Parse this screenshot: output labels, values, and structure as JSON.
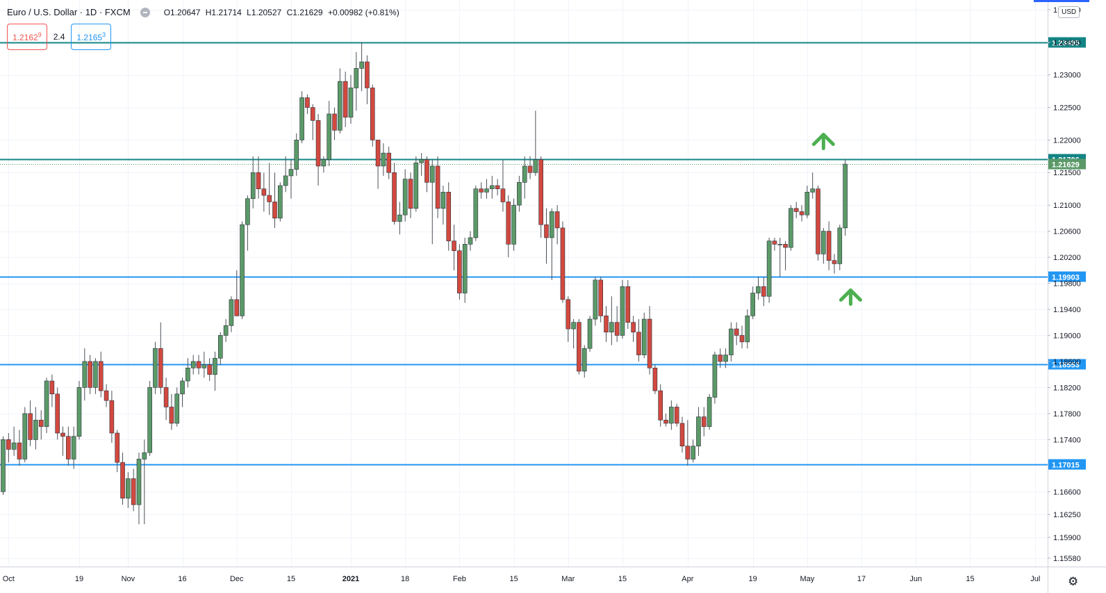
{
  "header": {
    "symbol": "Euro / U.S. Dollar · 1D · FXCM",
    "open": "O1.20647",
    "high": "H1.21714",
    "low": "L1.20527",
    "close": "C1.21629",
    "change": "+0.00982 (+0.81%)"
  },
  "quotes": {
    "sell_main": "1.2162",
    "sell_sup": "9",
    "spread": "2.4",
    "buy_main": "1.2165",
    "buy_sup": "3"
  },
  "currency": "USD",
  "colors": {
    "up": "#5b9a68",
    "down": "#d2493f",
    "teal_line": "#138484",
    "blue_line": "#2196f3",
    "arrow": "#4caf50"
  },
  "chart_data": {
    "type": "candlestick",
    "title": "Euro / U.S. Dollar · 1D · FXCM",
    "x_ticks": [
      {
        "i": 1,
        "label": "Oct"
      },
      {
        "i": 14,
        "label": "19"
      },
      {
        "i": 23,
        "label": "Nov"
      },
      {
        "i": 33,
        "label": "16"
      },
      {
        "i": 43,
        "label": "Dec"
      },
      {
        "i": 53,
        "label": "15"
      },
      {
        "i": 64,
        "label": "2021"
      },
      {
        "i": 74,
        "label": "18"
      },
      {
        "i": 84,
        "label": "Feb"
      },
      {
        "i": 94,
        "label": "15"
      },
      {
        "i": 104,
        "label": "Mar"
      },
      {
        "i": 114,
        "label": "15"
      },
      {
        "i": 126,
        "label": "Apr"
      },
      {
        "i": 138,
        "label": "19"
      },
      {
        "i": 148,
        "label": "May"
      },
      {
        "i": 158,
        "label": "17"
      },
      {
        "i": 168,
        "label": "Jun"
      },
      {
        "i": 178,
        "label": "15"
      },
      {
        "i": 190,
        "label": "Jul"
      }
    ],
    "y_ticks": [
      1.24,
      1.235,
      1.23,
      1.225,
      1.22,
      1.215,
      1.21,
      1.206,
      1.202,
      1.198,
      1.194,
      1.19,
      1.186,
      1.182,
      1.178,
      1.174,
      1.166,
      1.1625,
      1.159,
      1.1558
    ],
    "ylim": [
      1.1545,
      1.2415
    ],
    "horizontal_lines": [
      {
        "price": 1.23495,
        "label": "1.23495",
        "style": "teal"
      },
      {
        "price": 1.21706,
        "label": "1.21706",
        "style": "teal"
      },
      {
        "price": 1.19903,
        "label": "1.19903",
        "style": "blue"
      },
      {
        "price": 1.18553,
        "label": "1.18553",
        "style": "blue"
      },
      {
        "price": 1.17015,
        "label": "1.17015",
        "style": "blue"
      }
    ],
    "last_price": {
      "price": 1.21629,
      "label": "1.21629"
    },
    "annotations": [
      {
        "type": "up-arrow",
        "x_index": 151,
        "price": 1.2202
      },
      {
        "type": "up-arrow",
        "x_index": 156,
        "price": 1.1963
      }
    ],
    "candles": [
      [
        1.166,
        1.1745,
        1.1655,
        1.174
      ],
      [
        1.174,
        1.175,
        1.1705,
        1.1725
      ],
      [
        1.1725,
        1.176,
        1.1715,
        1.1735
      ],
      [
        1.1735,
        1.1755,
        1.17,
        1.171
      ],
      [
        1.171,
        1.179,
        1.1705,
        1.178
      ],
      [
        1.178,
        1.18,
        1.173,
        1.174
      ],
      [
        1.174,
        1.179,
        1.1725,
        1.177
      ],
      [
        1.177,
        1.1785,
        1.174,
        1.176
      ],
      [
        1.176,
        1.1835,
        1.175,
        1.183
      ],
      [
        1.183,
        1.184,
        1.179,
        1.181
      ],
      [
        1.181,
        1.182,
        1.174,
        1.175
      ],
      [
        1.175,
        1.176,
        1.1715,
        1.1745
      ],
      [
        1.1745,
        1.176,
        1.17,
        1.171
      ],
      [
        1.171,
        1.176,
        1.1695,
        1.1745
      ],
      [
        1.1745,
        1.183,
        1.174,
        1.182
      ],
      [
        1.182,
        1.188,
        1.18,
        1.186
      ],
      [
        1.186,
        1.187,
        1.181,
        1.182
      ],
      [
        1.182,
        1.1865,
        1.181,
        1.186
      ],
      [
        1.186,
        1.1875,
        1.1805,
        1.1815
      ],
      [
        1.1815,
        1.1825,
        1.179,
        1.18
      ],
      [
        1.18,
        1.1815,
        1.1735,
        1.175
      ],
      [
        1.175,
        1.1755,
        1.169,
        1.1705
      ],
      [
        1.1705,
        1.172,
        1.164,
        1.165
      ],
      [
        1.165,
        1.169,
        1.1635,
        1.168
      ],
      [
        1.168,
        1.1695,
        1.163,
        1.164
      ],
      [
        1.164,
        1.172,
        1.161,
        1.171
      ],
      [
        1.171,
        1.174,
        1.161,
        1.172
      ],
      [
        1.172,
        1.183,
        1.1715,
        1.182
      ],
      [
        1.182,
        1.189,
        1.181,
        1.188
      ],
      [
        1.188,
        1.192,
        1.181,
        1.182
      ],
      [
        1.182,
        1.1835,
        1.177,
        1.179
      ],
      [
        1.179,
        1.181,
        1.1755,
        1.1765
      ],
      [
        1.1765,
        1.182,
        1.176,
        1.181
      ],
      [
        1.181,
        1.1835,
        1.179,
        1.183
      ],
      [
        1.183,
        1.1865,
        1.182,
        1.185
      ],
      [
        1.185,
        1.187,
        1.184,
        1.186
      ],
      [
        1.186,
        1.187,
        1.184,
        1.185
      ],
      [
        1.185,
        1.1875,
        1.1835,
        1.1855
      ],
      [
        1.1855,
        1.1865,
        1.183,
        1.184
      ],
      [
        1.184,
        1.1875,
        1.1815,
        1.1865
      ],
      [
        1.1865,
        1.1905,
        1.1855,
        1.19
      ],
      [
        1.19,
        1.1925,
        1.189,
        1.1915
      ],
      [
        1.1915,
        1.196,
        1.1905,
        1.1955
      ],
      [
        1.1955,
        1.2,
        1.193,
        1.193
      ],
      [
        1.193,
        1.2075,
        1.1925,
        1.207
      ],
      [
        1.207,
        1.2115,
        1.203,
        1.211
      ],
      [
        1.211,
        1.2175,
        1.2095,
        1.215
      ],
      [
        1.215,
        1.2175,
        1.211,
        1.2125
      ],
      [
        1.2125,
        1.215,
        1.209,
        1.2115
      ],
      [
        1.2115,
        1.2165,
        1.2085,
        1.2105
      ],
      [
        1.2105,
        1.215,
        1.2065,
        1.208
      ],
      [
        1.208,
        1.2135,
        1.2075,
        1.213
      ],
      [
        1.213,
        1.2175,
        1.212,
        1.2145
      ],
      [
        1.2145,
        1.217,
        1.211,
        1.2155
      ],
      [
        1.2155,
        1.221,
        1.2145,
        1.22
      ],
      [
        1.22,
        1.2275,
        1.2195,
        1.2265
      ],
      [
        1.2265,
        1.227,
        1.224,
        1.225
      ],
      [
        1.225,
        1.2255,
        1.22,
        1.223
      ],
      [
        1.223,
        1.224,
        1.213,
        1.216
      ],
      [
        1.216,
        1.2175,
        1.215,
        1.217
      ],
      [
        1.217,
        1.226,
        1.216,
        1.224
      ],
      [
        1.224,
        1.225,
        1.22,
        1.2215
      ],
      [
        1.2215,
        1.231,
        1.221,
        1.229
      ],
      [
        1.229,
        1.2305,
        1.222,
        1.2235
      ],
      [
        1.2235,
        1.23,
        1.2225,
        1.228
      ],
      [
        1.228,
        1.2335,
        1.2245,
        1.231
      ],
      [
        1.231,
        1.235,
        1.2275,
        1.232
      ],
      [
        1.232,
        1.233,
        1.2255,
        1.228
      ],
      [
        1.228,
        1.2285,
        1.219,
        1.22
      ],
      [
        1.22,
        1.22,
        1.2125,
        1.216
      ],
      [
        1.216,
        1.2195,
        1.2145,
        1.218
      ],
      [
        1.218,
        1.219,
        1.214,
        1.215
      ],
      [
        1.215,
        1.2165,
        1.207,
        1.2075
      ],
      [
        1.2075,
        1.2105,
        1.2055,
        1.2085
      ],
      [
        1.2085,
        1.2155,
        1.2075,
        1.214
      ],
      [
        1.214,
        1.215,
        1.208,
        1.2095
      ],
      [
        1.2095,
        1.2175,
        1.209,
        1.2165
      ],
      [
        1.2165,
        1.218,
        1.2145,
        1.217
      ],
      [
        1.217,
        1.2175,
        1.212,
        1.2135
      ],
      [
        1.2135,
        1.217,
        1.204,
        1.216
      ],
      [
        1.216,
        1.2175,
        1.208,
        1.2095
      ],
      [
        1.2095,
        1.213,
        1.207,
        1.212
      ],
      [
        1.212,
        1.2135,
        1.203,
        1.2045
      ],
      [
        1.2045,
        1.207,
        1.2,
        1.203
      ],
      [
        1.203,
        1.204,
        1.1955,
        1.1965
      ],
      [
        1.1965,
        1.205,
        1.195,
        1.204
      ],
      [
        1.204,
        1.206,
        1.203,
        1.205
      ],
      [
        1.205,
        1.213,
        1.2045,
        1.2125
      ],
      [
        1.2125,
        1.2135,
        1.211,
        1.212
      ],
      [
        1.212,
        1.214,
        1.211,
        1.2125
      ],
      [
        1.2125,
        1.2145,
        1.211,
        1.213
      ],
      [
        1.213,
        1.214,
        1.2115,
        1.2125
      ],
      [
        1.2125,
        1.217,
        1.209,
        1.2105
      ],
      [
        1.2105,
        1.2115,
        1.202,
        1.204
      ],
      [
        1.204,
        1.211,
        1.203,
        1.21
      ],
      [
        1.21,
        1.2145,
        1.209,
        1.2135
      ],
      [
        1.2135,
        1.2175,
        1.211,
        1.216
      ],
      [
        1.216,
        1.2175,
        1.214,
        1.215
      ],
      [
        1.215,
        1.2245,
        1.2145,
        1.217
      ],
      [
        1.217,
        1.2175,
        1.205,
        1.207
      ],
      [
        1.207,
        1.2095,
        1.201,
        1.205
      ],
      [
        1.205,
        1.2095,
        1.1985,
        1.209
      ],
      [
        1.209,
        1.21,
        1.204,
        1.2065
      ],
      [
        1.2065,
        1.2075,
        1.195,
        1.1955
      ],
      [
        1.1955,
        1.196,
        1.189,
        1.191
      ],
      [
        1.191,
        1.1925,
        1.188,
        1.192
      ],
      [
        1.192,
        1.1925,
        1.184,
        1.1845
      ],
      [
        1.1845,
        1.1885,
        1.1835,
        1.188
      ],
      [
        1.188,
        1.193,
        1.1875,
        1.1925
      ],
      [
        1.1925,
        1.199,
        1.1915,
        1.1985
      ],
      [
        1.1985,
        1.199,
        1.192,
        1.193
      ],
      [
        1.193,
        1.1945,
        1.189,
        1.1905
      ],
      [
        1.1905,
        1.196,
        1.1885,
        1.192
      ],
      [
        1.192,
        1.1945,
        1.189,
        1.19
      ],
      [
        1.19,
        1.1985,
        1.1895,
        1.1975
      ],
      [
        1.1975,
        1.1985,
        1.191,
        1.192
      ],
      [
        1.192,
        1.193,
        1.189,
        1.1905
      ],
      [
        1.1905,
        1.1925,
        1.186,
        1.187
      ],
      [
        1.187,
        1.1935,
        1.1865,
        1.1925
      ],
      [
        1.1925,
        1.1945,
        1.184,
        1.185
      ],
      [
        1.185,
        1.1855,
        1.181,
        1.1815
      ],
      [
        1.1815,
        1.1825,
        1.176,
        1.177
      ],
      [
        1.177,
        1.178,
        1.176,
        1.1765
      ],
      [
        1.1765,
        1.18,
        1.1755,
        1.179
      ],
      [
        1.179,
        1.1795,
        1.176,
        1.1765
      ],
      [
        1.1765,
        1.1775,
        1.172,
        1.173
      ],
      [
        1.173,
        1.177,
        1.17,
        1.171
      ],
      [
        1.171,
        1.174,
        1.1705,
        1.173
      ],
      [
        1.173,
        1.179,
        1.1715,
        1.1775
      ],
      [
        1.1775,
        1.179,
        1.1745,
        1.176
      ],
      [
        1.176,
        1.181,
        1.1755,
        1.1805
      ],
      [
        1.1805,
        1.1875,
        1.1795,
        1.187
      ],
      [
        1.187,
        1.188,
        1.185,
        1.186
      ],
      [
        1.186,
        1.188,
        1.185,
        1.187
      ],
      [
        1.187,
        1.192,
        1.186,
        1.191
      ],
      [
        1.191,
        1.192,
        1.1885,
        1.19
      ],
      [
        1.19,
        1.1915,
        1.188,
        1.189
      ],
      [
        1.189,
        1.194,
        1.188,
        1.193
      ],
      [
        1.193,
        1.1975,
        1.1925,
        1.1965
      ],
      [
        1.1965,
        1.199,
        1.1955,
        1.1975
      ],
      [
        1.1975,
        1.199,
        1.1945,
        1.196
      ],
      [
        1.196,
        1.205,
        1.195,
        1.2045
      ],
      [
        1.2045,
        1.205,
        1.203,
        1.204
      ],
      [
        1.204,
        1.205,
        1.199,
        1.204
      ],
      [
        1.204,
        1.2045,
        1.2,
        1.2035
      ],
      [
        1.2035,
        1.21,
        1.203,
        1.2095
      ],
      [
        1.2095,
        1.2105,
        1.208,
        1.209
      ],
      [
        1.209,
        1.21,
        1.2075,
        1.2085
      ],
      [
        1.2085,
        1.213,
        1.208,
        1.212
      ],
      [
        1.212,
        1.215,
        1.211,
        1.2125
      ],
      [
        1.2125,
        1.213,
        1.2015,
        1.2025
      ],
      [
        1.2025,
        1.2065,
        1.201,
        1.206
      ],
      [
        1.206,
        1.2075,
        1.2,
        1.2015
      ],
      [
        1.2015,
        1.2025,
        1.1995,
        1.201
      ],
      [
        1.201,
        1.207,
        1.2,
        1.2065
      ],
      [
        1.2065,
        1.2171,
        1.2053,
        1.2163
      ]
    ]
  }
}
